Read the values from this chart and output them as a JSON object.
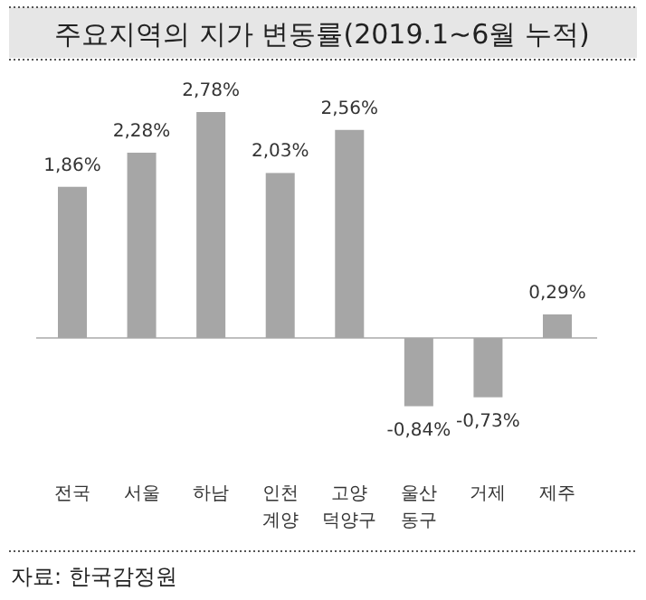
{
  "chart_data": {
    "type": "bar",
    "title": "주요지역의 지가 변동률(2019.1~6월 누적)",
    "categories": [
      "전국",
      "서울",
      "하남",
      "인천\n계양",
      "고양\n덕양구",
      "울산\n동구",
      "거제",
      "제주"
    ],
    "values": [
      1.86,
      2.28,
      2.78,
      2.03,
      2.56,
      -0.84,
      -0.73,
      0.29
    ],
    "value_labels": [
      "1,86%",
      "2,28%",
      "2,78%",
      "2,03%",
      "2,56%",
      "-0,84%",
      "-0,73%",
      "0,29%"
    ],
    "color": "#a6a6a6",
    "annotations": [
      "자료: 한국감정원"
    ]
  }
}
